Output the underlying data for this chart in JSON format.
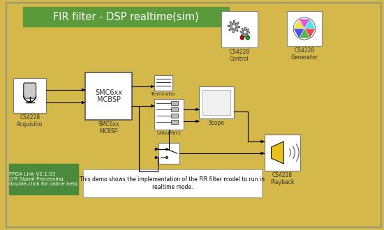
{
  "bg_color": "#D4B84A",
  "title_text": "FIR filter - DSP realtime(sim)",
  "title_bg": "#5A9A3A",
  "title_text_color": "white",
  "title_fontsize": 10.5,
  "bottom_note": "This demo shows the implementation of the FIR filter model to run in\nrealtime mode.",
  "fpga_box_color": "#4A8A3A",
  "fpga_text": "FPGA Link V2.1.03\nLYR Signal Processing.\ndouble-click for online help.",
  "block_bg": "white",
  "block_border": "#888888",
  "label_color": "#333333",
  "label_fontsize": 5.5,
  "outer_border": "#999977",
  "layout": {
    "title": [
      30,
      8,
      300,
      28
    ],
    "mic": [
      14,
      110,
      48,
      50
    ],
    "smc": [
      120,
      103,
      68,
      68
    ],
    "term": [
      220,
      107,
      28,
      22
    ],
    "unbuf": [
      218,
      140,
      40,
      46
    ],
    "scope": [
      285,
      123,
      48,
      46
    ],
    "switch": [
      225,
      203,
      30,
      30
    ],
    "pb": [
      380,
      193,
      50,
      52
    ],
    "ctrl": [
      316,
      15,
      52,
      52
    ],
    "gen": [
      410,
      15,
      50,
      50
    ],
    "fpga": [
      8,
      232,
      100,
      44
    ],
    "note": [
      116,
      238,
      250,
      40
    ]
  }
}
